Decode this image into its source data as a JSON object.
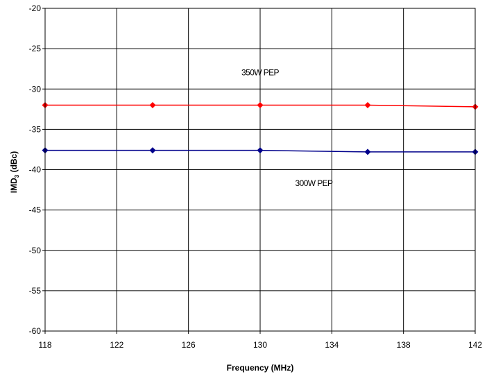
{
  "chart_data": {
    "type": "line",
    "title": "",
    "xlabel": "Frequency (MHz)",
    "ylabel": {
      "prefix": "IMD",
      "subscript": "3",
      "suffix": " (dBc)"
    },
    "xlim": [
      118,
      142
    ],
    "ylim": [
      -60,
      -20
    ],
    "xticks": [
      "118",
      "122",
      "126",
      "130",
      "134",
      "138",
      "142"
    ],
    "yticks": [
      "-20",
      "-25",
      "-30",
      "-35",
      "-40",
      "-45",
      "-50",
      "-55",
      "-60"
    ],
    "grid": true,
    "legend": "none",
    "series": [
      {
        "name": "350W PEP",
        "color": "#ff0000",
        "x": [
          118,
          124,
          130,
          136,
          142
        ],
        "y": [
          -32.0,
          -32.0,
          -32.0,
          -32.0,
          -32.2
        ]
      },
      {
        "name": "300W PEP",
        "color": "#00008b",
        "x": [
          118,
          124,
          130,
          136,
          142
        ],
        "y": [
          -37.6,
          -37.6,
          -37.6,
          -37.8,
          -37.8
        ]
      }
    ],
    "annotations": [
      {
        "text": "350W PEP",
        "x": 130,
        "y": -28.3
      },
      {
        "text": "300W PEP",
        "x": 133,
        "y": -42.0
      }
    ]
  }
}
